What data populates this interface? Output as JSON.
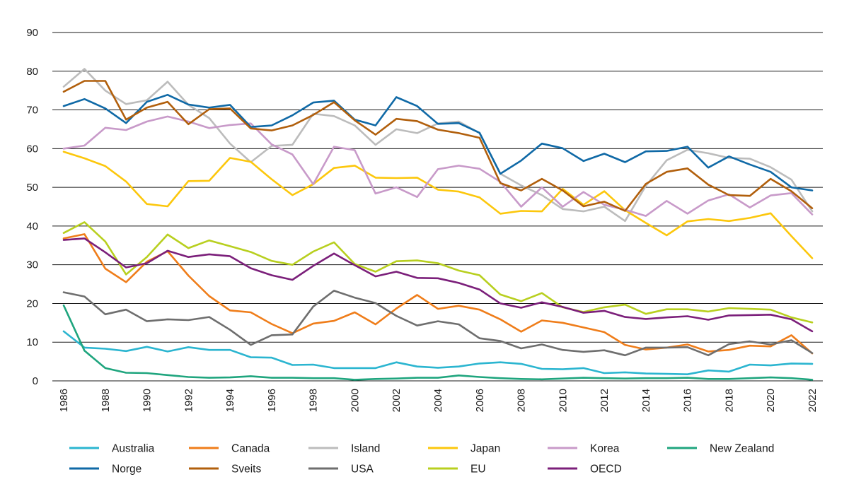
{
  "chart_data": {
    "type": "line",
    "title": "",
    "xlabel": "",
    "ylabel": "",
    "ylim": [
      0,
      90
    ],
    "yticks": [
      0,
      10,
      20,
      30,
      40,
      50,
      60,
      70,
      80,
      90
    ],
    "xticks": [
      1986,
      1988,
      1990,
      1992,
      1994,
      1996,
      1998,
      2000,
      2002,
      2004,
      2006,
      2008,
      2010,
      2012,
      2014,
      2016,
      2018,
      2020,
      2022
    ],
    "x": [
      1986,
      1987,
      1988,
      1989,
      1990,
      1991,
      1992,
      1993,
      1994,
      1995,
      1996,
      1997,
      1998,
      1999,
      2000,
      2001,
      2002,
      2003,
      2004,
      2005,
      2006,
      2007,
      2008,
      2009,
      2010,
      2011,
      2012,
      2013,
      2014,
      2015,
      2016,
      2017,
      2018,
      2019,
      2020,
      2021,
      2022
    ],
    "grid": true,
    "legend_position": "bottom",
    "series": [
      {
        "name": "Australia",
        "color": "#2bb5d0",
        "values": [
          12.8,
          8.6,
          8.3,
          7.7,
          8.8,
          7.6,
          8.7,
          8.0,
          8.0,
          6.1,
          6.0,
          4.1,
          4.2,
          3.3,
          3.3,
          3.3,
          4.8,
          3.7,
          3.4,
          3.7,
          4.5,
          4.8,
          4.4,
          3.1,
          3.0,
          3.3,
          2.0,
          2.2,
          1.9,
          1.8,
          1.7,
          2.7,
          2.4,
          4.2,
          4.0,
          4.5,
          4.4
        ]
      },
      {
        "name": "Canada",
        "color": "#ef7d1a",
        "values": [
          36.8,
          37.9,
          29.0,
          25.5,
          30.8,
          33.5,
          27.2,
          21.9,
          18.2,
          17.7,
          14.7,
          12.3,
          14.8,
          15.5,
          17.7,
          14.6,
          18.7,
          22.2,
          18.6,
          19.4,
          18.4,
          15.9,
          12.7,
          15.6,
          15.0,
          13.8,
          12.6,
          9.3,
          8.1,
          8.6,
          9.4,
          7.6,
          8.0,
          9.1,
          8.9,
          11.8,
          7.1
        ]
      },
      {
        "name": "Island",
        "color": "#bcbcbc",
        "values": [
          76.0,
          80.6,
          75.0,
          71.5,
          72.5,
          77.3,
          71.3,
          67.9,
          61.3,
          56.5,
          60.7,
          61.0,
          69.0,
          68.4,
          66.0,
          61.0,
          65.0,
          64.0,
          66.5,
          67.0,
          64.0,
          53.5,
          50.5,
          48.0,
          44.4,
          43.8,
          45.0,
          41.3,
          50.4,
          57.0,
          59.7,
          58.8,
          57.6,
          57.4,
          55.2,
          52.0,
          43.8
        ]
      },
      {
        "name": "Japan",
        "color": "#fcc70c",
        "values": [
          59.2,
          57.5,
          55.5,
          51.5,
          45.7,
          45.1,
          51.6,
          51.7,
          57.6,
          56.6,
          52.1,
          48.0,
          50.8,
          55.0,
          55.6,
          52.5,
          52.4,
          52.5,
          49.4,
          48.9,
          47.4,
          43.2,
          43.9,
          43.8,
          49.6,
          45.5,
          49.0,
          44.1,
          40.8,
          37.6,
          41.2,
          41.8,
          41.3,
          42.1,
          43.3,
          37.4,
          31.7
        ]
      },
      {
        "name": "Korea",
        "color": "#c89ac9",
        "values": [
          60.0,
          60.8,
          65.4,
          64.8,
          67.0,
          68.3,
          67.0,
          65.3,
          66.1,
          66.5,
          61.1,
          58.5,
          50.8,
          60.5,
          59.6,
          48.4,
          50.0,
          47.5,
          54.7,
          55.6,
          54.8,
          51.4,
          45.0,
          50.0,
          45.0,
          48.8,
          45.5,
          44.2,
          42.6,
          46.5,
          43.2,
          46.6,
          48.2,
          44.8,
          47.9,
          48.5,
          43.0
        ]
      },
      {
        "name": "New Zealand",
        "color": "#1fa57e",
        "values": [
          19.5,
          7.8,
          3.3,
          2.1,
          2.0,
          1.5,
          1.0,
          0.8,
          0.9,
          1.2,
          0.8,
          0.8,
          0.7,
          0.7,
          0.3,
          0.5,
          0.6,
          0.8,
          0.8,
          1.4,
          1.0,
          0.7,
          0.5,
          0.4,
          0.6,
          0.8,
          0.7,
          0.6,
          0.7,
          0.7,
          0.8,
          0.5,
          0.5,
          0.7,
          0.9,
          0.7,
          0.3
        ]
      },
      {
        "name": "Norge",
        "color": "#0f69a6",
        "values": [
          71.0,
          72.8,
          70.4,
          66.6,
          72.1,
          73.9,
          71.4,
          70.6,
          71.3,
          65.6,
          66.0,
          68.6,
          71.9,
          72.4,
          67.5,
          66.0,
          73.3,
          71.0,
          66.4,
          66.6,
          64.1,
          53.5,
          56.9,
          61.3,
          60.1,
          56.8,
          58.7,
          56.5,
          59.3,
          59.4,
          60.5,
          55.1,
          58.0,
          55.9,
          54.0,
          50.0,
          49.2
        ]
      },
      {
        "name": "Sveits",
        "color": "#b15f0c",
        "values": [
          74.7,
          77.5,
          77.5,
          67.5,
          70.6,
          72.1,
          66.3,
          70.2,
          70.4,
          65.2,
          64.7,
          66.0,
          68.7,
          72.0,
          67.3,
          63.6,
          67.7,
          67.1,
          64.9,
          64.0,
          62.8,
          51.1,
          49.2,
          52.2,
          49.2,
          45.1,
          46.3,
          43.9,
          50.9,
          54.0,
          54.9,
          50.7,
          48.0,
          47.8,
          52.2,
          49.0,
          44.6
        ]
      },
      {
        "name": "USA",
        "color": "#6e6e6e",
        "values": [
          22.9,
          21.8,
          17.2,
          18.4,
          15.4,
          15.9,
          15.7,
          16.5,
          13.2,
          9.3,
          11.8,
          12.0,
          19.2,
          23.3,
          21.5,
          20.1,
          16.8,
          14.3,
          15.4,
          14.6,
          11.0,
          10.3,
          8.4,
          9.4,
          8.0,
          7.5,
          7.9,
          6.6,
          8.6,
          8.6,
          8.7,
          6.6,
          9.5,
          10.2,
          9.4,
          10.5,
          7.2
        ]
      },
      {
        "name": "EU",
        "color": "#b8cf1f",
        "values": [
          38.2,
          41.0,
          36.0,
          27.5,
          32.0,
          37.8,
          34.3,
          36.3,
          34.8,
          33.3,
          31.0,
          30.0,
          33.4,
          35.8,
          30.2,
          28.2,
          30.9,
          31.1,
          30.4,
          28.5,
          27.3,
          22.3,
          20.6,
          22.7,
          19.0,
          17.8,
          19.0,
          19.7,
          17.3,
          18.5,
          18.5,
          17.9,
          18.8,
          18.6,
          18.4,
          16.4,
          15.1
        ]
      },
      {
        "name": "OECD",
        "color": "#7b1f7a",
        "values": [
          36.4,
          36.8,
          33.2,
          29.3,
          30.4,
          33.6,
          32.0,
          32.7,
          32.2,
          29.1,
          27.3,
          26.1,
          29.7,
          32.9,
          29.9,
          27.0,
          28.2,
          26.6,
          26.5,
          25.3,
          23.6,
          20.0,
          18.9,
          20.3,
          19.1,
          17.6,
          18.1,
          16.5,
          16.0,
          16.4,
          16.7,
          15.8,
          16.9,
          17.0,
          17.1,
          15.9,
          12.8
        ]
      }
    ]
  }
}
